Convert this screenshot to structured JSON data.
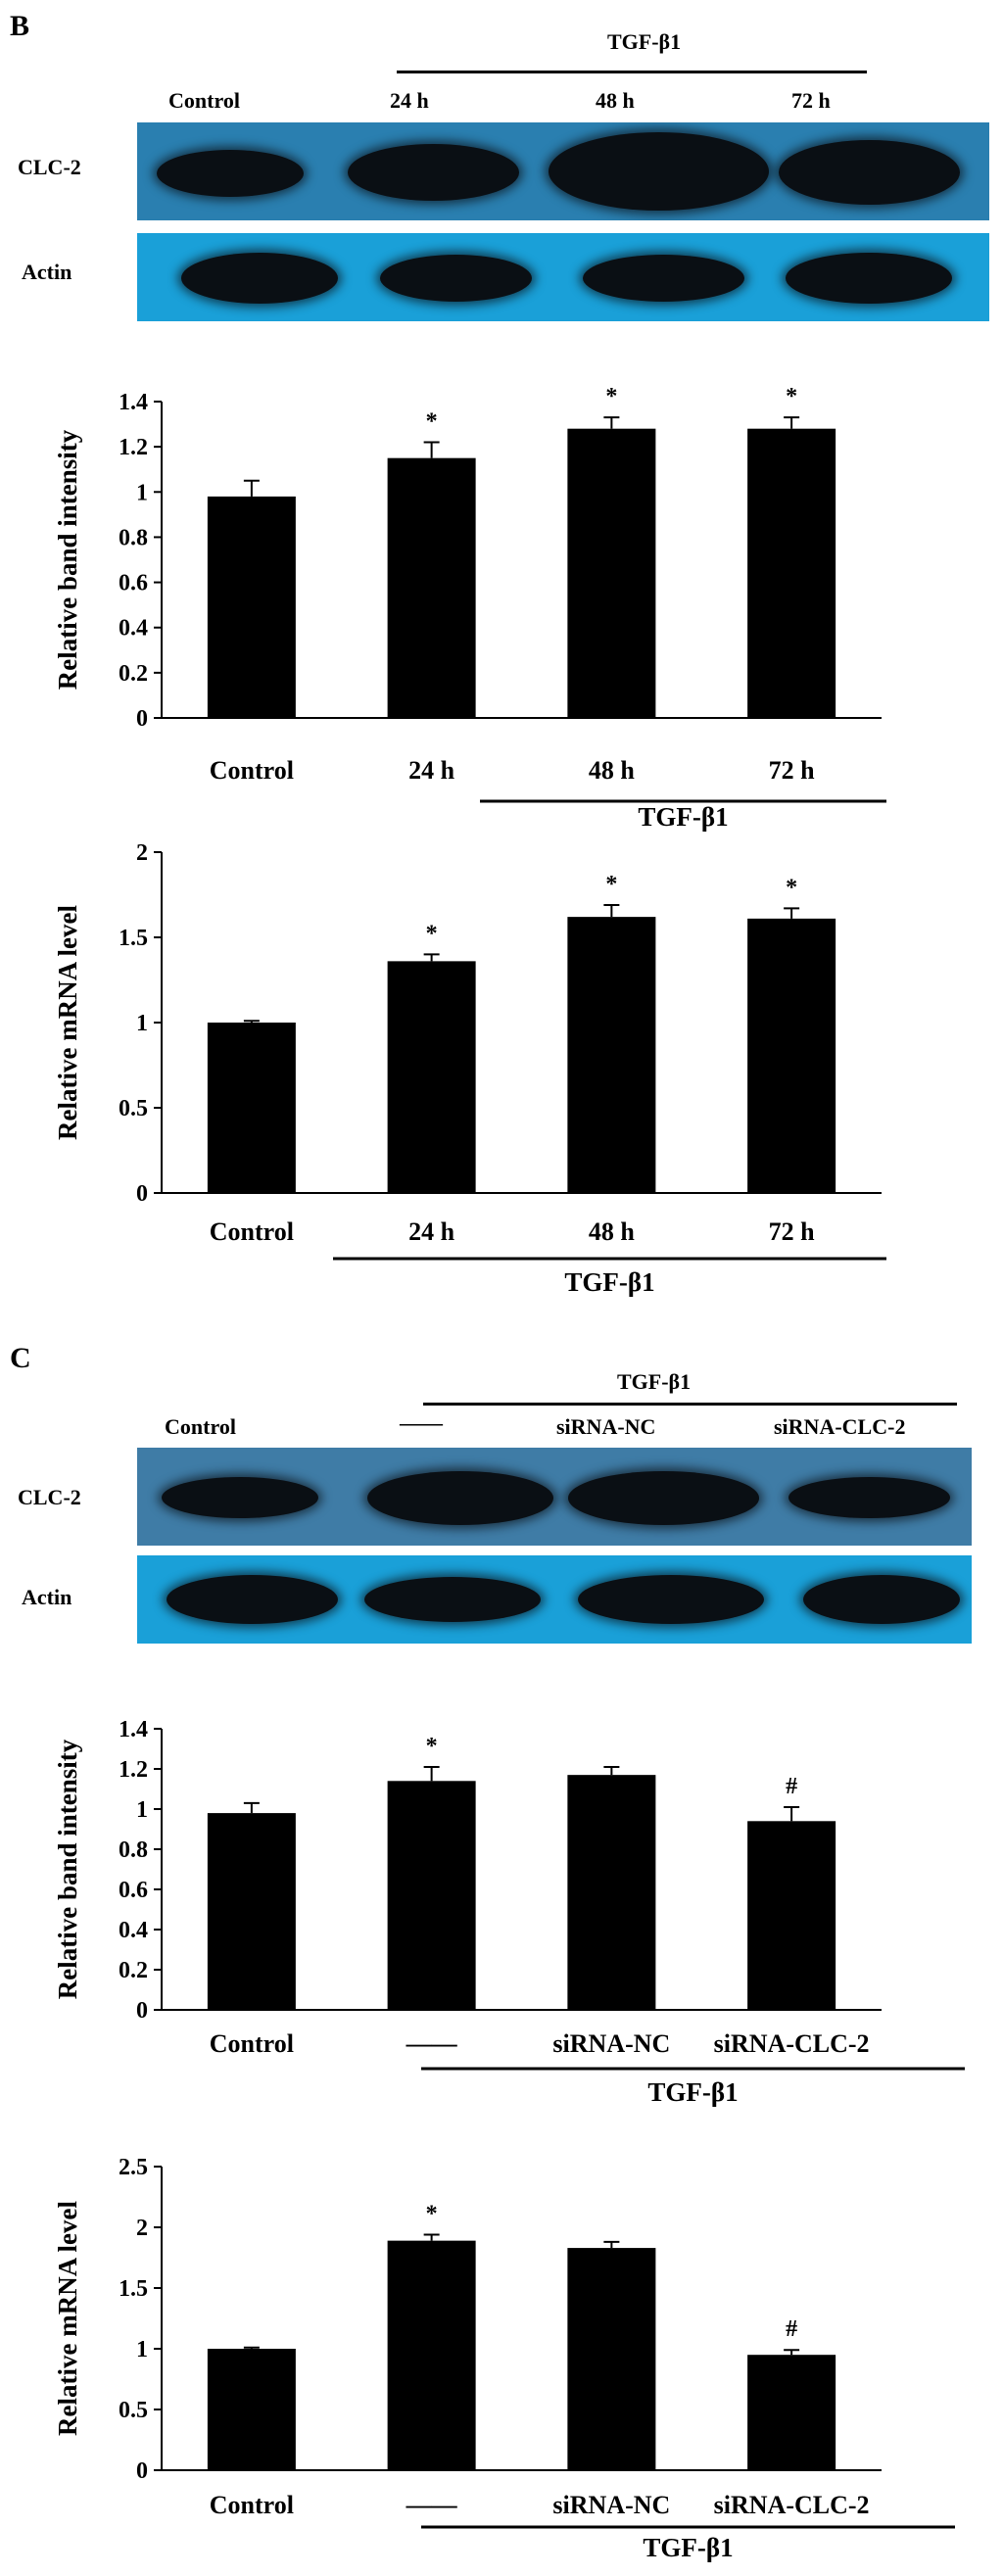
{
  "panel_b": {
    "letter": "B",
    "blot": {
      "group_label": "TGF-β1",
      "lanes": [
        "Control",
        "24 h",
        "48 h",
        "72 h"
      ],
      "rows": [
        "CLC-2",
        "Actin"
      ],
      "colors": {
        "clc2_bg": "#2a7fb0",
        "actin_bg": "#1aa0d8",
        "band": "#0a0f14"
      }
    }
  },
  "panel_c": {
    "letter": "C",
    "blot": {
      "group_label": "TGF-β1",
      "lanes": [
        "Control",
        "——",
        "siRNA-NC",
        "siRNA-CLC-2"
      ],
      "rows": [
        "CLC-2",
        "Actin"
      ],
      "colors": {
        "clc2_bg": "#3f7ca6",
        "actin_bg": "#1aa0d8",
        "band": "#0a0f14"
      }
    }
  },
  "chart_data": [
    {
      "type": "bar",
      "categories": [
        "Control",
        "24 h",
        "48 h",
        "72 h"
      ],
      "values": [
        0.98,
        1.15,
        1.28,
        1.28
      ],
      "errors": [
        0.07,
        0.07,
        0.05,
        0.05
      ],
      "annotations": [
        "",
        "*",
        "*",
        "*"
      ],
      "ylabel": "Relative band intensity",
      "group_label": "TGF-β1",
      "ylim": [
        0,
        1.4
      ],
      "yticks": [
        "0",
        "0.2",
        "0.4",
        "0.6",
        "0.8",
        "1",
        "1.2",
        "1.4"
      ]
    },
    {
      "type": "bar",
      "categories": [
        "Control",
        "24 h",
        "48 h",
        "72 h"
      ],
      "values": [
        1.0,
        1.36,
        1.62,
        1.61
      ],
      "errors": [
        0.01,
        0.04,
        0.07,
        0.06
      ],
      "annotations": [
        "",
        "*",
        "*",
        "*"
      ],
      "ylabel": "Relative mRNA level",
      "group_label": "TGF-β1",
      "ylim": [
        0,
        2
      ],
      "yticks": [
        "0",
        "0.5",
        "1",
        "1.5",
        "2"
      ]
    },
    {
      "type": "bar",
      "categories": [
        "Control",
        "——",
        "siRNA-NC",
        "siRNA-CLC-2"
      ],
      "values": [
        0.98,
        1.14,
        1.17,
        0.94
      ],
      "errors": [
        0.05,
        0.07,
        0.04,
        0.07
      ],
      "annotations": [
        "",
        "*",
        "",
        "#"
      ],
      "ylabel": "Relative band intensity",
      "group_label": "TGF-β1",
      "ylim": [
        0,
        1.4
      ],
      "yticks": [
        "0",
        "0.2",
        "0.4",
        "0.6",
        "0.8",
        "1",
        "1.2",
        "1.4"
      ]
    },
    {
      "type": "bar",
      "categories": [
        "Control",
        "——",
        "siRNA-NC",
        "siRNA-CLC-2"
      ],
      "values": [
        1.0,
        1.89,
        1.83,
        0.95
      ],
      "errors": [
        0.01,
        0.05,
        0.05,
        0.04
      ],
      "annotations": [
        "",
        "*",
        "",
        "#"
      ],
      "ylabel": "Relative mRNA level",
      "group_label": "TGF-β1",
      "ylim": [
        0,
        2.5
      ],
      "yticks": [
        "0",
        "0.5",
        "1",
        "1.5",
        "2",
        "2.5"
      ]
    }
  ]
}
